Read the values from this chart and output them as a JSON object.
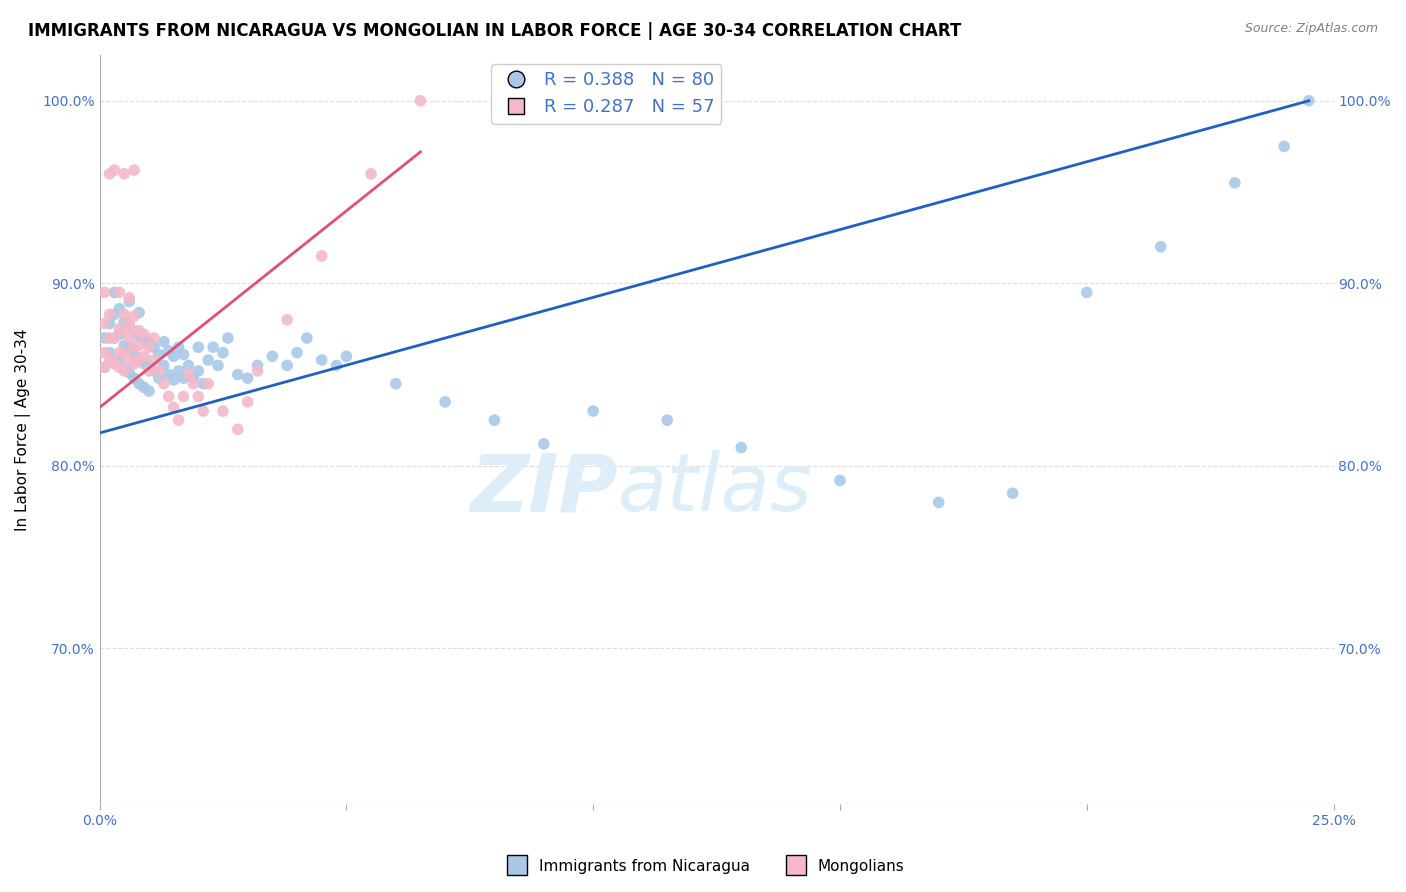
{
  "title": "IMMIGRANTS FROM NICARAGUA VS MONGOLIAN IN LABOR FORCE | AGE 30-34 CORRELATION CHART",
  "source": "Source: ZipAtlas.com",
  "ylabel_label": "In Labor Force | Age 30-34",
  "yticks": [
    "70.0%",
    "80.0%",
    "90.0%",
    "100.0%"
  ],
  "ytick_vals": [
    0.7,
    0.8,
    0.9,
    1.0
  ],
  "xlim": [
    0.0,
    0.25
  ],
  "ylim": [
    0.615,
    1.025
  ],
  "legend_r1": "R = 0.388",
  "legend_n1": "N = 80",
  "legend_r2": "R = 0.287",
  "legend_n2": "N = 57",
  "blue_color": "#a8c8e8",
  "pink_color": "#f4b8c8",
  "line_blue": "#2060c0",
  "line_pink": "#e05070",
  "text_blue": "#4472C4",
  "watermark_zip": "ZIP",
  "watermark_atlas": "atlas",
  "watermark_fontsize": 58,
  "watermark_color": "#ddeef8",
  "background_color": "#ffffff",
  "grid_color": "#dddddd",
  "title_fontsize": 12,
  "axis_fontsize": 11,
  "tick_fontsize": 10,
  "blue_scatter_x": [
    0.001,
    0.001,
    0.002,
    0.002,
    0.003,
    0.003,
    0.003,
    0.003,
    0.004,
    0.004,
    0.004,
    0.005,
    0.005,
    0.005,
    0.006,
    0.006,
    0.006,
    0.006,
    0.007,
    0.007,
    0.007,
    0.008,
    0.008,
    0.008,
    0.008,
    0.009,
    0.009,
    0.009,
    0.01,
    0.01,
    0.01,
    0.011,
    0.011,
    0.012,
    0.012,
    0.013,
    0.013,
    0.014,
    0.014,
    0.015,
    0.015,
    0.016,
    0.016,
    0.017,
    0.017,
    0.018,
    0.019,
    0.02,
    0.02,
    0.021,
    0.022,
    0.023,
    0.024,
    0.025,
    0.026,
    0.028,
    0.03,
    0.032,
    0.035,
    0.038,
    0.04,
    0.042,
    0.045,
    0.048,
    0.05,
    0.06,
    0.07,
    0.08,
    0.09,
    0.1,
    0.115,
    0.13,
    0.15,
    0.17,
    0.185,
    0.2,
    0.215,
    0.23,
    0.24,
    0.245
  ],
  "blue_scatter_y": [
    0.854,
    0.87,
    0.862,
    0.878,
    0.857,
    0.87,
    0.883,
    0.895,
    0.858,
    0.872,
    0.886,
    0.853,
    0.866,
    0.879,
    0.851,
    0.864,
    0.877,
    0.89,
    0.848,
    0.861,
    0.874,
    0.845,
    0.858,
    0.871,
    0.884,
    0.843,
    0.856,
    0.869,
    0.841,
    0.855,
    0.868,
    0.852,
    0.865,
    0.848,
    0.861,
    0.855,
    0.868,
    0.85,
    0.863,
    0.847,
    0.86,
    0.852,
    0.865,
    0.848,
    0.861,
    0.855,
    0.848,
    0.852,
    0.865,
    0.845,
    0.858,
    0.865,
    0.855,
    0.862,
    0.87,
    0.85,
    0.848,
    0.855,
    0.86,
    0.855,
    0.862,
    0.87,
    0.858,
    0.855,
    0.86,
    0.845,
    0.835,
    0.825,
    0.812,
    0.83,
    0.825,
    0.81,
    0.792,
    0.78,
    0.785,
    0.895,
    0.92,
    0.955,
    0.975,
    1.0
  ],
  "pink_scatter_x": [
    0.001,
    0.001,
    0.001,
    0.001,
    0.002,
    0.002,
    0.002,
    0.002,
    0.003,
    0.003,
    0.003,
    0.004,
    0.004,
    0.004,
    0.004,
    0.005,
    0.005,
    0.005,
    0.005,
    0.005,
    0.006,
    0.006,
    0.006,
    0.006,
    0.007,
    0.007,
    0.007,
    0.007,
    0.007,
    0.008,
    0.008,
    0.008,
    0.009,
    0.009,
    0.01,
    0.01,
    0.011,
    0.011,
    0.012,
    0.013,
    0.014,
    0.015,
    0.016,
    0.017,
    0.018,
    0.019,
    0.02,
    0.021,
    0.022,
    0.025,
    0.028,
    0.03,
    0.032,
    0.038,
    0.045,
    0.055,
    0.065
  ],
  "pink_scatter_y": [
    0.854,
    0.862,
    0.878,
    0.895,
    0.858,
    0.87,
    0.883,
    0.96,
    0.856,
    0.87,
    0.962,
    0.854,
    0.862,
    0.875,
    0.895,
    0.852,
    0.862,
    0.874,
    0.883,
    0.96,
    0.858,
    0.87,
    0.878,
    0.892,
    0.856,
    0.865,
    0.874,
    0.882,
    0.962,
    0.858,
    0.866,
    0.874,
    0.86,
    0.872,
    0.852,
    0.865,
    0.858,
    0.87,
    0.852,
    0.845,
    0.838,
    0.832,
    0.825,
    0.838,
    0.85,
    0.845,
    0.838,
    0.83,
    0.845,
    0.83,
    0.82,
    0.835,
    0.852,
    0.88,
    0.915,
    0.96,
    1.0
  ],
  "xtick_positions": [
    0.0,
    0.05,
    0.1,
    0.15,
    0.2,
    0.25
  ],
  "xtick_labels_show": [
    "0.0%",
    "",
    "",
    "",
    "",
    "25.0%"
  ]
}
